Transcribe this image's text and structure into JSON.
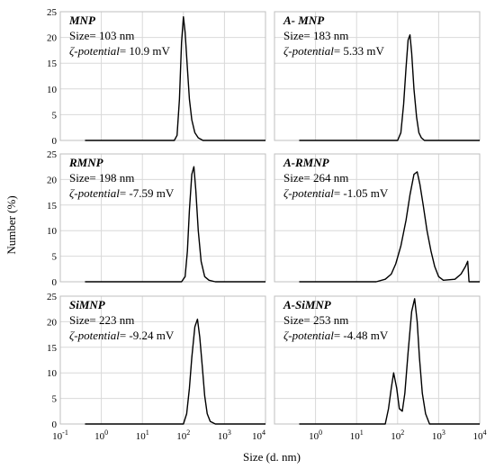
{
  "chart_data": {
    "type": "line",
    "xlabel": "Size (d. nm)",
    "ylabel": "Number (%)",
    "xscale": "log",
    "xlim": [
      0.1,
      10000
    ],
    "x_tick_labels": [
      {
        "base": "10",
        "exp": "-1"
      },
      {
        "base": "10",
        "exp": "0"
      },
      {
        "base": "10",
        "exp": "1"
      },
      {
        "base": "10",
        "exp": "2"
      },
      {
        "base": "10",
        "exp": "3"
      },
      {
        "base": "10",
        "exp": "4"
      }
    ],
    "ylim": [
      0,
      25
    ],
    "y_ticks": [
      0,
      5,
      10,
      15,
      20,
      25
    ],
    "grid": true,
    "panels": [
      {
        "name": "MNP",
        "size_text": "Size= 103 nm",
        "zeta_label": "ζ-potential",
        "zeta_value": "= 10.9 mV",
        "x": [
          0.4,
          60,
          70,
          80,
          90,
          100,
          110,
          125,
          140,
          160,
          190,
          230,
          300,
          10000
        ],
        "y": [
          0,
          0,
          1,
          8,
          19,
          24,
          21,
          14,
          8,
          4,
          1.5,
          0.5,
          0,
          0
        ]
      },
      {
        "name": "A- MNP",
        "size_text": "Size= 183 nm",
        "zeta_label": "ζ-potential",
        "zeta_value": "= 5.33 mV",
        "x": [
          0.4,
          100,
          120,
          140,
          160,
          180,
          200,
          220,
          250,
          290,
          330,
          380,
          450,
          10000
        ],
        "y": [
          0,
          0,
          1.5,
          7,
          14,
          19.5,
          20.5,
          17,
          10,
          4.5,
          1.5,
          0.5,
          0,
          0
        ]
      },
      {
        "name": "RMNP",
        "size_text": "Size= 198 nm",
        "zeta_label": "ζ-potential",
        "zeta_value": "= -7.59 mV",
        "x": [
          0.4,
          90,
          110,
          125,
          140,
          160,
          180,
          200,
          230,
          270,
          330,
          420,
          600,
          10000
        ],
        "y": [
          0,
          0,
          1,
          6,
          14,
          21,
          22.5,
          18,
          10,
          4,
          1,
          0.3,
          0,
          0
        ]
      },
      {
        "name": "A-RMNP",
        "size_text": "Size= 264 nm",
        "zeta_label": "ζ-potential",
        "zeta_value": "= -1.05 mV",
        "x": [
          0.4,
          30,
          50,
          70,
          90,
          120,
          160,
          200,
          250,
          300,
          350,
          420,
          520,
          650,
          800,
          1000,
          1300,
          2500,
          3500,
          4500,
          5100,
          5500,
          10000
        ],
        "y": [
          0,
          0,
          0.5,
          1.5,
          3.5,
          7,
          12,
          17,
          21,
          21.5,
          19,
          15,
          10,
          6,
          3,
          1,
          0.3,
          0.5,
          1.5,
          3,
          4,
          0,
          0
        ]
      },
      {
        "name": "SiMNP",
        "size_text": "Size= 223 nm",
        "zeta_label": "ζ-potential",
        "zeta_value": "= -9.24 mV",
        "x": [
          0.4,
          100,
          120,
          140,
          160,
          190,
          220,
          250,
          290,
          330,
          380,
          450,
          600,
          10000
        ],
        "y": [
          0,
          0,
          2,
          7,
          13,
          19,
          20.5,
          17,
          11,
          5.5,
          2,
          0.5,
          0,
          0
        ]
      },
      {
        "name": "A-SiMNP",
        "size_text": "Size= 253 nm",
        "zeta_label": "ζ-potential",
        "zeta_value": "= -4.48 mV",
        "x": [
          0.4,
          50,
          60,
          70,
          80,
          95,
          110,
          130,
          150,
          180,
          220,
          260,
          300,
          340,
          400,
          480,
          600,
          10000
        ],
        "y": [
          0,
          0,
          3,
          7,
          10,
          7,
          3,
          2.5,
          6,
          14,
          22,
          24.5,
          20,
          13,
          6,
          2,
          0,
          0
        ]
      }
    ]
  }
}
